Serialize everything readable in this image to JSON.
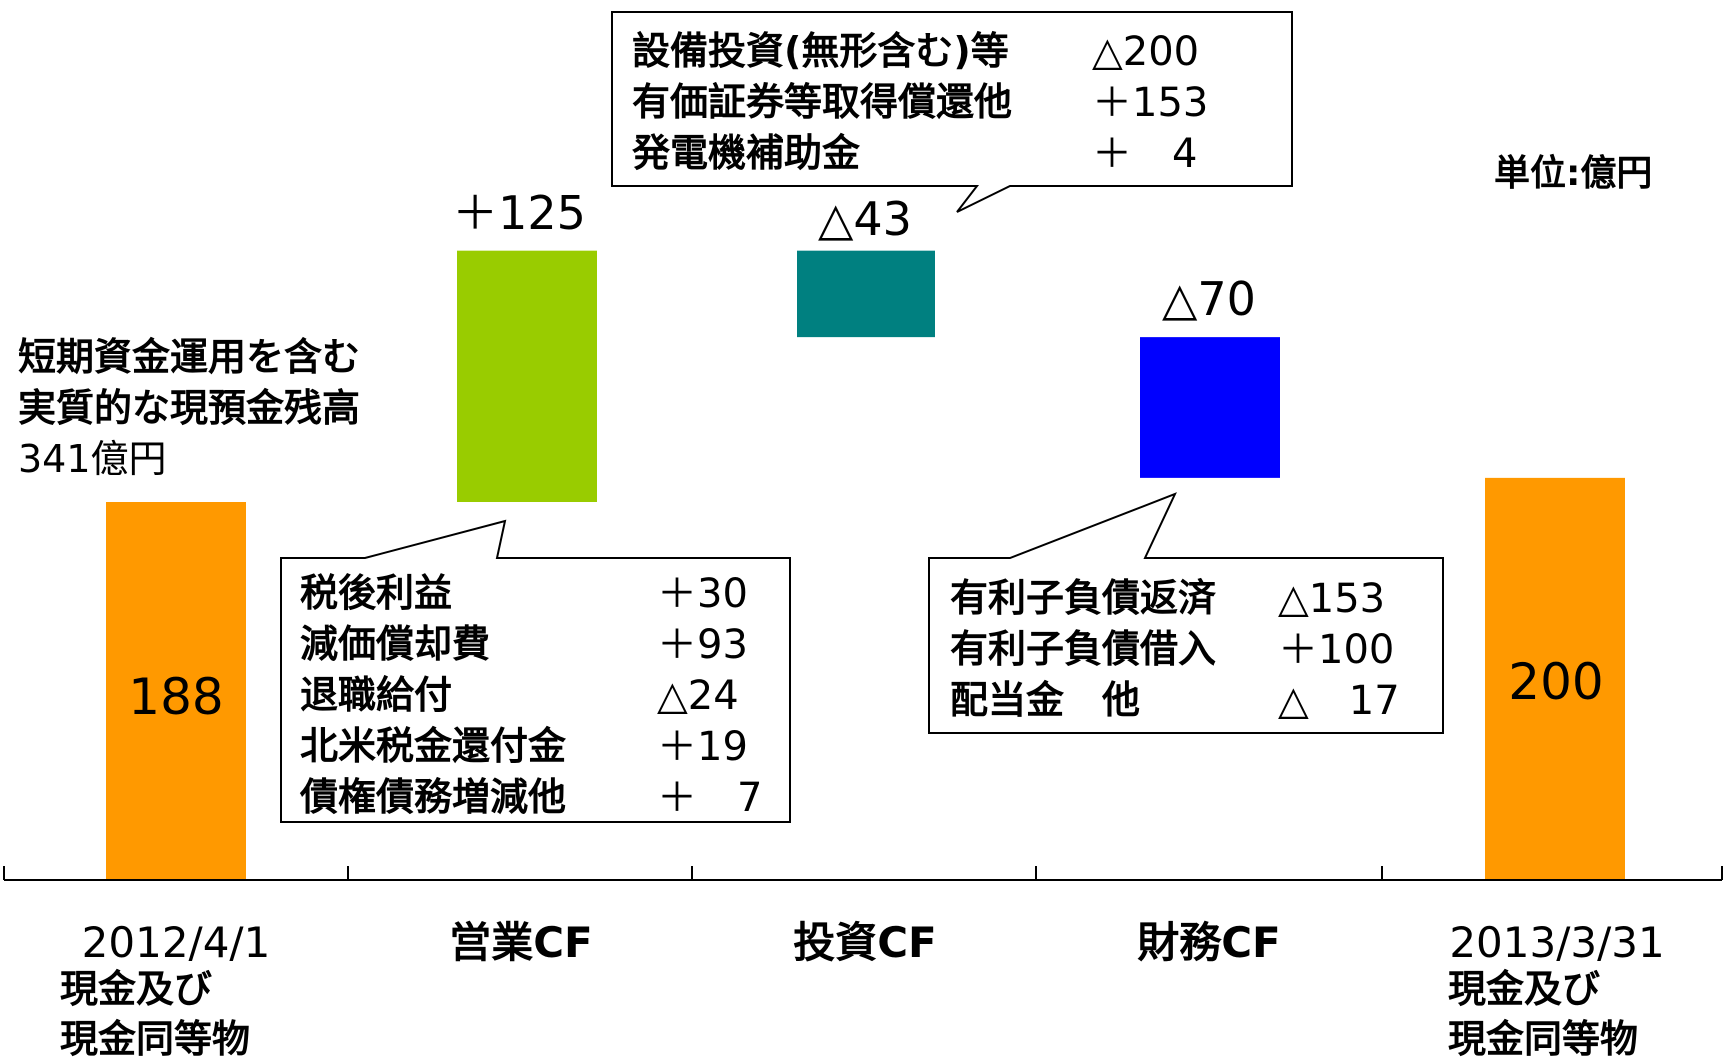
{
  "unit_label": "単位:億円",
  "note_lines": [
    "短期資金運用を含む",
    "実質的な現預金残高",
    "341億円"
  ],
  "chart_data": {
    "type": "bar",
    "subtype": "waterfall",
    "categories": [
      "2012/4/1",
      "営業CF",
      "投資CF",
      "財務CF",
      "2013/3/31"
    ],
    "category_sublines": [
      [
        "現金及び",
        "現金同等物"
      ],
      [],
      [],
      [],
      [
        "現金及び",
        "現金同等物"
      ]
    ],
    "values": [
      188,
      125,
      -43,
      -70,
      200
    ],
    "value_labels": [
      "188",
      "＋125",
      "△43",
      "△70",
      "200"
    ],
    "ranges": [
      [
        0,
        188
      ],
      [
        188,
        313
      ],
      [
        270,
        313
      ],
      [
        200,
        270
      ],
      [
        0,
        200
      ]
    ],
    "colors": [
      "#FF9900",
      "#99CC00",
      "#008080",
      "#0000FF",
      "#FF9900"
    ],
    "ylim": [
      0,
      400
    ],
    "breakdowns": [
      {
        "category": "営業CF",
        "items": [
          {
            "label": "税後利益",
            "value": "＋30"
          },
          {
            "label": "減価償却費",
            "value": "＋93"
          },
          {
            "label": "退職給付",
            "value": "△24"
          },
          {
            "label": "北米税金還付金",
            "value": "＋19"
          },
          {
            "label": "債権債務増減他",
            "value": "＋　7"
          }
        ]
      },
      {
        "category": "投資CF",
        "items": [
          {
            "label": "設備投資(無形含む)等",
            "value": "△200"
          },
          {
            "label": "有価証券等取得償還他",
            "value": "＋153"
          },
          {
            "label": "発電機補助金",
            "value": "＋　4"
          }
        ]
      },
      {
        "category": "財務CF",
        "items": [
          {
            "label": "有利子負債返済",
            "value": "△153"
          },
          {
            "label": "有利子負債借入",
            "value": "＋100"
          },
          {
            "label": "配当金　他",
            "value": "△　17"
          }
        ]
      }
    ]
  }
}
